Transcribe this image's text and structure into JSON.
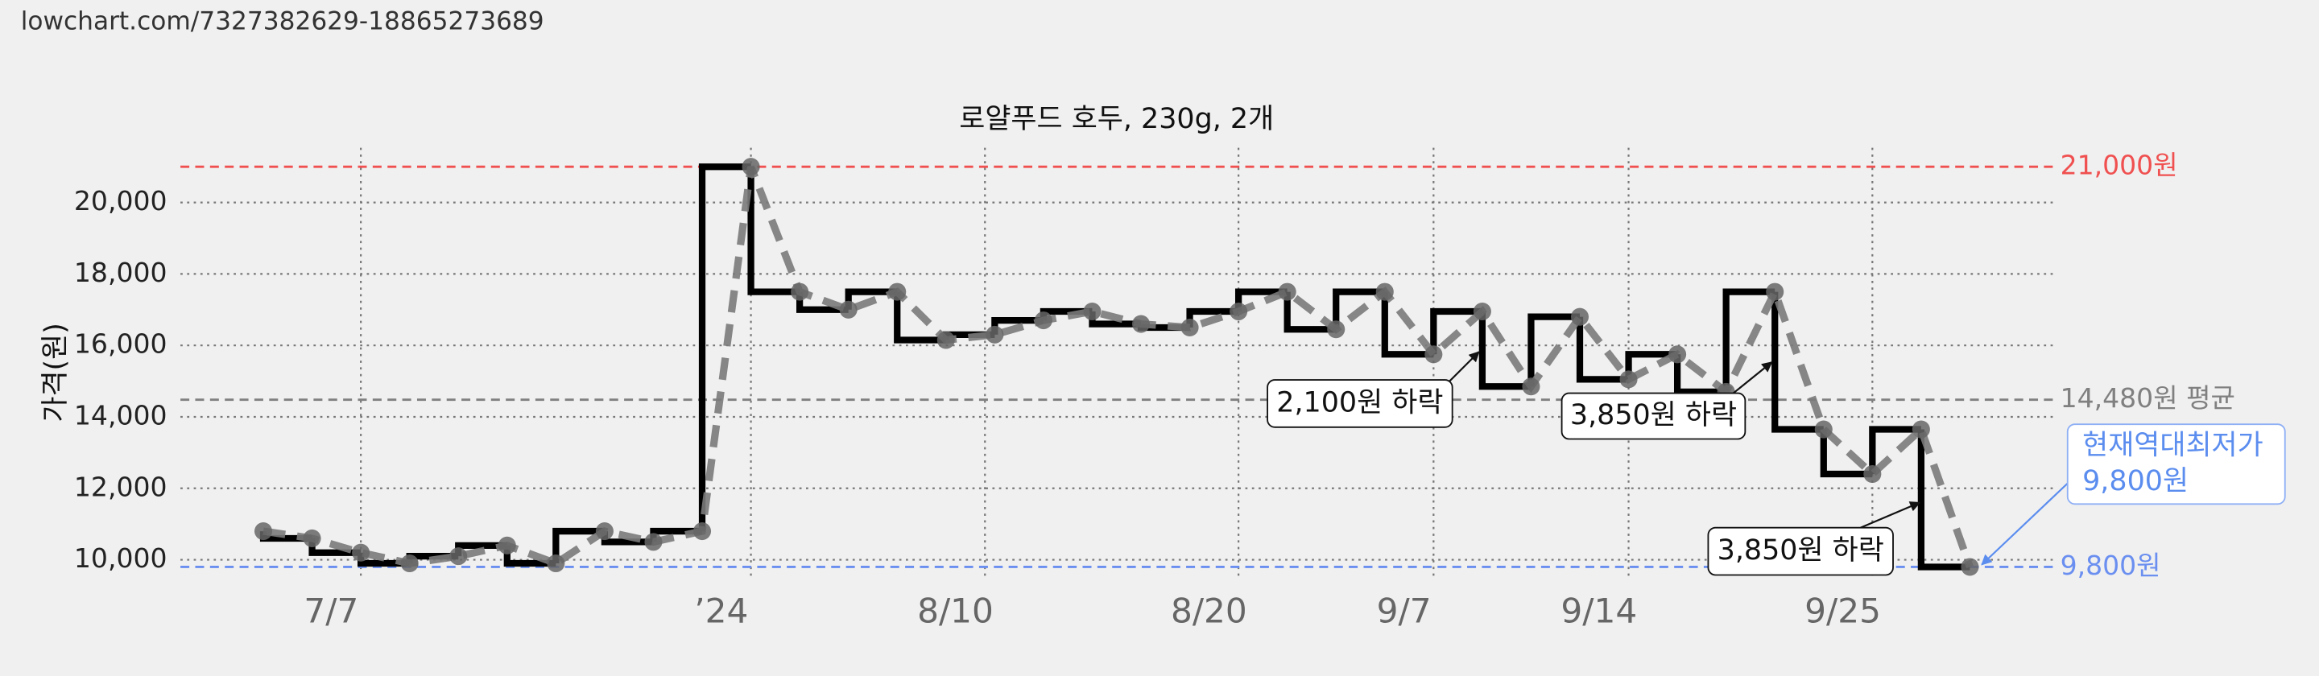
{
  "header": {
    "url": "lowchart.com/7327382629-18865273689"
  },
  "chart_data": {
    "type": "step",
    "title": "로얄푸드 호두, 230g, 2개",
    "y_label": "가격(원)",
    "x": [
      0,
      1,
      2,
      3,
      4,
      5,
      6,
      7,
      8,
      9,
      10,
      11,
      12,
      13,
      14,
      15,
      16,
      17,
      18,
      19,
      20,
      21,
      22,
      23,
      24,
      25,
      26,
      27,
      28,
      29,
      30,
      31,
      32,
      33,
      34,
      35
    ],
    "series": [
      {
        "color": "#000000",
        "line_color": "#7a7a7a",
        "values": [
          10800,
          10600,
          10200,
          9900,
          10100,
          10400,
          9900,
          10800,
          10500,
          10800,
          21000,
          17500,
          17000,
          17500,
          16150,
          16300,
          16700,
          16950,
          16600,
          16500,
          16950,
          17500,
          16450,
          17500,
          15750,
          16950,
          14850,
          16800,
          15050,
          15750,
          14700,
          17500,
          13650,
          12400,
          13650,
          9800
        ]
      }
    ],
    "xlim": [
      -1.7,
      36.7
    ],
    "xticks": [
      {
        "value": 2,
        "label": "7/7"
      },
      {
        "value": 10,
        "label": "’24"
      },
      {
        "value": 14.8,
        "label": "8/10"
      },
      {
        "value": 20,
        "label": "8/20"
      },
      {
        "value": 24,
        "label": "9/7"
      },
      {
        "value": 28,
        "label": "9/14"
      },
      {
        "value": 33,
        "label": "9/25"
      }
    ],
    "ylim": [
      9450,
      21530
    ],
    "yticks": [
      {
        "value": 10000,
        "label": "10,000"
      },
      {
        "value": 12000,
        "label": "12,000"
      },
      {
        "value": 14000,
        "label": "14,000"
      },
      {
        "value": 16000,
        "label": "16,000"
      },
      {
        "value": 18000,
        "label": "18,000"
      },
      {
        "value": 20000,
        "label": "20,000"
      }
    ],
    "grid": true,
    "hlines": [
      {
        "value": 21000,
        "label": "21,000원",
        "color": "#f05050"
      },
      {
        "value": 14480,
        "label": "14,480원 평균",
        "color": "#808080"
      },
      {
        "value": 9800,
        "label": "9,800원",
        "color": "#6a8ff0"
      }
    ],
    "annotations": [
      {
        "lines": [
          "2,100원 하락"
        ]
      },
      {
        "lines": [
          "3,850원 하락"
        ]
      },
      {
        "lines": [
          "3,850원 하락"
        ]
      },
      {
        "lines": [
          "현재역대최저가",
          "9,800원"
        ]
      }
    ]
  }
}
